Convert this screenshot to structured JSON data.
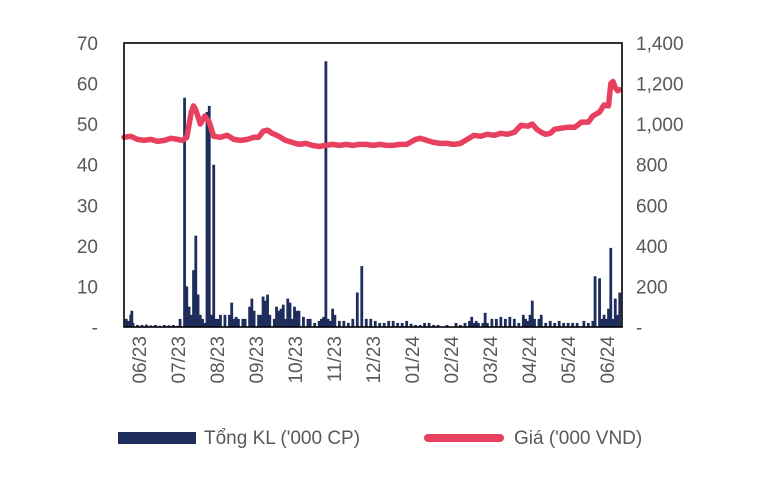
{
  "chart_data": {
    "type": "bar+line",
    "y_left": {
      "ylim": [
        0,
        70
      ],
      "ticks": [
        "-",
        "10",
        "20",
        "30",
        "40",
        "50",
        "60",
        "70"
      ]
    },
    "y_right": {
      "ylim": [
        0,
        1400
      ],
      "ticks": [
        "-",
        "200",
        "400",
        "600",
        "800",
        "1,000",
        "1,200",
        "1,400"
      ]
    },
    "x_tick_labels": [
      "06/23",
      "07/23",
      "08/23",
      "09/23",
      "10/23",
      "11/23",
      "12/23",
      "01/24",
      "02/24",
      "03/24",
      "04/24",
      "05/24",
      "06/24"
    ],
    "series": [
      {
        "name": "Tổng KL ('000 CP)",
        "kind": "bar",
        "axis": "left",
        "color": "#1f2d5c",
        "points": [
          [
            0.1,
            2
          ],
          [
            0.2,
            1.5
          ],
          [
            0.3,
            3
          ],
          [
            0.35,
            4
          ],
          [
            0.4,
            1
          ],
          [
            0.6,
            0.5
          ],
          [
            0.8,
            0.5
          ],
          [
            1.0,
            0.6
          ],
          [
            1.2,
            0.4
          ],
          [
            1.4,
            0.5
          ],
          [
            1.6,
            0.3
          ],
          [
            1.8,
            0.5
          ],
          [
            2.0,
            0.4
          ],
          [
            2.2,
            0.5
          ],
          [
            2.4,
            0.3
          ],
          [
            2.5,
            2
          ],
          [
            2.7,
            56.5
          ],
          [
            2.8,
            10
          ],
          [
            2.9,
            5
          ],
          [
            3.0,
            3
          ],
          [
            3.1,
            14
          ],
          [
            3.2,
            22.5
          ],
          [
            3.3,
            8
          ],
          [
            3.4,
            3
          ],
          [
            3.5,
            2
          ],
          [
            3.6,
            1
          ],
          [
            3.7,
            53
          ],
          [
            3.8,
            54.5
          ],
          [
            3.9,
            3
          ],
          [
            4.0,
            40
          ],
          [
            4.1,
            2
          ],
          [
            4.2,
            2
          ],
          [
            4.3,
            3
          ],
          [
            4.5,
            3
          ],
          [
            4.7,
            3
          ],
          [
            4.8,
            6
          ],
          [
            4.9,
            2
          ],
          [
            5.0,
            2.5
          ],
          [
            5.1,
            2
          ],
          [
            5.3,
            2
          ],
          [
            5.4,
            2
          ],
          [
            5.6,
            5
          ],
          [
            5.7,
            7
          ],
          [
            5.8,
            4
          ],
          [
            6.0,
            3
          ],
          [
            6.1,
            3
          ],
          [
            6.2,
            7.5
          ],
          [
            6.3,
            6.5
          ],
          [
            6.4,
            8
          ],
          [
            6.5,
            3
          ],
          [
            6.7,
            2
          ],
          [
            6.8,
            5
          ],
          [
            6.9,
            4
          ],
          [
            7.0,
            4.5
          ],
          [
            7.1,
            5.5
          ],
          [
            7.2,
            2
          ],
          [
            7.3,
            7
          ],
          [
            7.4,
            6
          ],
          [
            7.5,
            2
          ],
          [
            7.6,
            5
          ],
          [
            7.7,
            4
          ],
          [
            7.8,
            4
          ],
          [
            8.0,
            2.5
          ],
          [
            8.2,
            2
          ],
          [
            8.3,
            2
          ],
          [
            8.5,
            1
          ],
          [
            8.7,
            1.5
          ],
          [
            8.8,
            2
          ],
          [
            8.9,
            2.5
          ],
          [
            9.0,
            65.5
          ],
          [
            9.1,
            2
          ],
          [
            9.2,
            1.5
          ],
          [
            9.3,
            4.5
          ],
          [
            9.4,
            3
          ],
          [
            9.6,
            1.5
          ],
          [
            9.8,
            1.5
          ],
          [
            10.0,
            1
          ],
          [
            10.2,
            2
          ],
          [
            10.4,
            8.5
          ],
          [
            10.6,
            15
          ],
          [
            10.8,
            2
          ],
          [
            11.0,
            2
          ],
          [
            11.2,
            1.5
          ],
          [
            11.4,
            1
          ],
          [
            11.6,
            1
          ],
          [
            11.8,
            1.5
          ],
          [
            12.0,
            1.5
          ],
          [
            12.2,
            1
          ],
          [
            12.4,
            1
          ],
          [
            12.6,
            1.5
          ],
          [
            12.8,
            0.8
          ],
          [
            13.0,
            0.5
          ],
          [
            13.2,
            0.5
          ],
          [
            13.4,
            1
          ],
          [
            13.6,
            1
          ],
          [
            13.8,
            0.5
          ],
          [
            14.0,
            0.5
          ],
          [
            14.4,
            0.5
          ],
          [
            14.8,
            1
          ],
          [
            15.0,
            0.5
          ],
          [
            15.2,
            1
          ],
          [
            15.4,
            1.5
          ],
          [
            15.5,
            2.5
          ],
          [
            15.6,
            1
          ],
          [
            15.7,
            1.5
          ],
          [
            15.8,
            1
          ],
          [
            16.0,
            1
          ],
          [
            16.1,
            3.5
          ],
          [
            16.2,
            1
          ],
          [
            16.4,
            2
          ],
          [
            16.6,
            2
          ],
          [
            16.8,
            2.5
          ],
          [
            17.0,
            2
          ],
          [
            17.2,
            2.5
          ],
          [
            17.4,
            2
          ],
          [
            17.6,
            1
          ],
          [
            17.8,
            3
          ],
          [
            17.9,
            2
          ],
          [
            18.0,
            1.5
          ],
          [
            18.1,
            3
          ],
          [
            18.2,
            6.5
          ],
          [
            18.3,
            2
          ],
          [
            18.5,
            2
          ],
          [
            18.6,
            3
          ],
          [
            18.8,
            1
          ],
          [
            19.0,
            1.5
          ],
          [
            19.2,
            1
          ],
          [
            19.4,
            1.5
          ],
          [
            19.6,
            1
          ],
          [
            19.8,
            1
          ],
          [
            20.0,
            1
          ],
          [
            20.2,
            1
          ],
          [
            20.5,
            1.5
          ],
          [
            20.7,
            1
          ],
          [
            20.9,
            1.5
          ],
          [
            21.0,
            12.5
          ],
          [
            21.2,
            12
          ],
          [
            21.3,
            2
          ],
          [
            21.4,
            3
          ],
          [
            21.5,
            2
          ],
          [
            21.6,
            4.5
          ],
          [
            21.7,
            19.5
          ],
          [
            21.8,
            2
          ],
          [
            21.9,
            7
          ],
          [
            22.0,
            3
          ],
          [
            22.1,
            8.5
          ]
        ]
      },
      {
        "name": "Giá ('000 VND)",
        "kind": "line",
        "axis": "right",
        "color": "#e8415f",
        "points": [
          [
            0,
            935
          ],
          [
            0.3,
            940
          ],
          [
            0.6,
            925
          ],
          [
            0.9,
            920
          ],
          [
            1.2,
            925
          ],
          [
            1.5,
            915
          ],
          [
            1.8,
            920
          ],
          [
            2.1,
            930
          ],
          [
            2.4,
            925
          ],
          [
            2.6,
            920
          ],
          [
            2.8,
            935
          ],
          [
            3.0,
            1060
          ],
          [
            3.1,
            1090
          ],
          [
            3.2,
            1070
          ],
          [
            3.4,
            1000
          ],
          [
            3.6,
            1040
          ],
          [
            3.8,
            1010
          ],
          [
            4.0,
            940
          ],
          [
            4.3,
            935
          ],
          [
            4.6,
            945
          ],
          [
            4.9,
            925
          ],
          [
            5.2,
            920
          ],
          [
            5.5,
            925
          ],
          [
            5.8,
            935
          ],
          [
            6.0,
            935
          ],
          [
            6.2,
            965
          ],
          [
            6.4,
            970
          ],
          [
            6.6,
            955
          ],
          [
            6.9,
            940
          ],
          [
            7.2,
            920
          ],
          [
            7.5,
            910
          ],
          [
            7.8,
            900
          ],
          [
            8.1,
            905
          ],
          [
            8.4,
            895
          ],
          [
            8.7,
            890
          ],
          [
            9.0,
            895
          ],
          [
            9.3,
            900
          ],
          [
            9.6,
            895
          ],
          [
            9.9,
            900
          ],
          [
            10.2,
            895
          ],
          [
            10.5,
            900
          ],
          [
            10.8,
            900
          ],
          [
            11.1,
            895
          ],
          [
            11.4,
            900
          ],
          [
            11.7,
            895
          ],
          [
            12.0,
            895
          ],
          [
            12.3,
            900
          ],
          [
            12.6,
            900
          ],
          [
            13.0,
            925
          ],
          [
            13.2,
            930
          ],
          [
            13.5,
            920
          ],
          [
            13.8,
            910
          ],
          [
            14.1,
            905
          ],
          [
            14.4,
            905
          ],
          [
            14.7,
            900
          ],
          [
            15.0,
            905
          ],
          [
            15.3,
            925
          ],
          [
            15.6,
            945
          ],
          [
            15.9,
            940
          ],
          [
            16.2,
            950
          ],
          [
            16.5,
            945
          ],
          [
            16.8,
            955
          ],
          [
            17.1,
            950
          ],
          [
            17.4,
            960
          ],
          [
            17.7,
            995
          ],
          [
            18.0,
            990
          ],
          [
            18.2,
            1000
          ],
          [
            18.4,
            975
          ],
          [
            18.6,
            960
          ],
          [
            18.8,
            950
          ],
          [
            19.0,
            955
          ],
          [
            19.2,
            975
          ],
          [
            19.5,
            980
          ],
          [
            19.8,
            985
          ],
          [
            20.1,
            985
          ],
          [
            20.4,
            1010
          ],
          [
            20.7,
            1010
          ],
          [
            20.9,
            1040
          ],
          [
            21.2,
            1060
          ],
          [
            21.4,
            1095
          ],
          [
            21.6,
            1090
          ],
          [
            21.7,
            1200
          ],
          [
            21.8,
            1210
          ],
          [
            21.9,
            1180
          ],
          [
            22.0,
            1165
          ],
          [
            22.1,
            1170
          ]
        ]
      }
    ],
    "legend": {
      "position": "bottom",
      "items": [
        {
          "label": "Tổng KL ('000 CP)",
          "color": "#1f2d5c",
          "shape": "bar"
        },
        {
          "label": "Giá ('000 VND)",
          "color": "#e8415f",
          "shape": "line"
        }
      ]
    }
  }
}
